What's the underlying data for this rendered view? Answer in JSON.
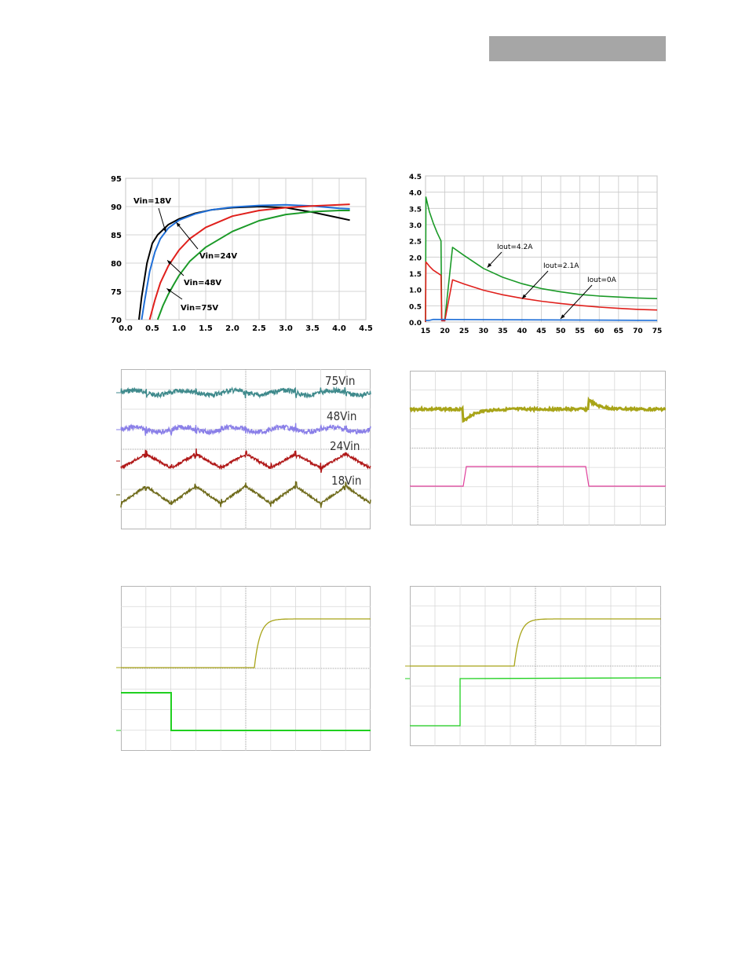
{
  "header": {
    "color": "#a6a6a6"
  },
  "colors": {
    "black": "#000000",
    "blue": "#1f6fd8",
    "red": "#e0201c",
    "green": "#1b9a28",
    "scope_teal": "#3f8a8c",
    "scope_violet": "#8a7fe8",
    "scope_darkred": "#b01818",
    "scope_olive": "#6e6a1a",
    "scope_yellow": "#a8a418",
    "scope_magenta": "#e0409c",
    "scope_green": "#20d020",
    "grid": "#c8c8c8"
  },
  "chart_data": [
    {
      "id": "efficiency",
      "type": "line",
      "xlim": [
        0.0,
        4.5
      ],
      "ylim": [
        70,
        95
      ],
      "xticks": [
        "0.0",
        "0.5",
        "1.0",
        "1.5",
        "2.0",
        "2.5",
        "3.0",
        "3.5",
        "4.0",
        "4.5"
      ],
      "yticks": [
        "70",
        "75",
        "80",
        "85",
        "90",
        "95"
      ],
      "grid": true,
      "series": [
        {
          "name": "Vin=18V",
          "color": "black",
          "x": [
            0.25,
            0.3,
            0.4,
            0.5,
            0.6,
            0.8,
            1.0,
            1.3,
            1.6,
            2.0,
            2.5,
            3.0,
            3.5,
            4.0,
            4.2
          ],
          "y": [
            70,
            74,
            80,
            83.5,
            85,
            86.8,
            87.8,
            88.8,
            89.4,
            89.8,
            90.0,
            89.8,
            89.0,
            88.0,
            87.6
          ]
        },
        {
          "name": "Vin=24V",
          "color": "blue",
          "x": [
            0.3,
            0.35,
            0.45,
            0.55,
            0.65,
            0.8,
            1.0,
            1.3,
            1.6,
            2.0,
            2.5,
            3.0,
            3.5,
            4.0,
            4.2
          ],
          "y": [
            70,
            73,
            78.5,
            82,
            84.3,
            86.2,
            87.6,
            88.7,
            89.4,
            89.9,
            90.2,
            90.3,
            90.1,
            89.7,
            89.6
          ]
        },
        {
          "name": "Vin=48V",
          "color": "red",
          "x": [
            0.45,
            0.55,
            0.65,
            0.8,
            1.0,
            1.2,
            1.5,
            2.0,
            2.5,
            3.0,
            3.5,
            4.0,
            4.2
          ],
          "y": [
            70,
            73.5,
            76.5,
            79.5,
            82.3,
            84.3,
            86.3,
            88.3,
            89.3,
            89.8,
            90.1,
            90.3,
            90.4
          ]
        },
        {
          "name": "Vin=75V",
          "color": "green",
          "x": [
            0.6,
            0.7,
            0.8,
            0.9,
            1.0,
            1.2,
            1.5,
            2.0,
            2.5,
            3.0,
            3.5,
            4.0,
            4.2
          ],
          "y": [
            70,
            72.5,
            74.5,
            76.2,
            77.8,
            80.3,
            82.8,
            85.6,
            87.5,
            88.6,
            89.1,
            89.3,
            89.3
          ]
        }
      ],
      "annotations": [
        "Vin=18V",
        "Vin=24V",
        "Vin=48V",
        "Vin=75V"
      ]
    },
    {
      "id": "decay",
      "type": "line",
      "xlim": [
        15,
        75
      ],
      "ylim": [
        0,
        4.5
      ],
      "xticks": [
        "15",
        "20",
        "25",
        "30",
        "35",
        "40",
        "45",
        "50",
        "55",
        "60",
        "65",
        "70",
        "75"
      ],
      "yticks": [
        "0.0",
        "0.5",
        "1.0",
        "1.5",
        "2.0",
        "2.5",
        "3.0",
        "3.5",
        "4.0",
        "4.5"
      ],
      "grid": true,
      "series": [
        {
          "name": "Iout=4.2A",
          "color": "green",
          "x": [
            15,
            15.1,
            16,
            17,
            18,
            19,
            19.2,
            20,
            22,
            25,
            30,
            35,
            40,
            45,
            50,
            55,
            60,
            65,
            70,
            75
          ],
          "y": [
            0,
            3.85,
            3.4,
            3.05,
            2.75,
            2.5,
            0.08,
            0.08,
            2.3,
            2.05,
            1.65,
            1.38,
            1.18,
            1.03,
            0.93,
            0.85,
            0.8,
            0.77,
            0.74,
            0.72
          ]
        },
        {
          "name": "Iout=2.1A",
          "color": "red",
          "x": [
            15,
            15.1,
            16,
            17,
            18,
            19,
            19.2,
            20,
            22,
            25,
            30,
            35,
            40,
            45,
            50,
            55,
            60,
            65,
            70,
            75
          ],
          "y": [
            0,
            1.85,
            1.72,
            1.6,
            1.52,
            1.44,
            0.04,
            0.04,
            1.3,
            1.17,
            0.98,
            0.84,
            0.73,
            0.64,
            0.57,
            0.51,
            0.46,
            0.42,
            0.39,
            0.37
          ]
        },
        {
          "name": "Iout=0A",
          "color": "blue",
          "x": [
            15,
            16,
            17,
            75
          ],
          "y": [
            0.05,
            0.05,
            0.08,
            0.05
          ]
        }
      ],
      "annotations": [
        "Iout=4.2A",
        "Iout=2.1A",
        "Iout=0A"
      ]
    },
    {
      "id": "ripple",
      "type": "line",
      "labels": [
        "75Vin",
        "48Vin",
        "24Vin",
        "18Vin"
      ],
      "series_colors": [
        "scope_teal",
        "scope_violet",
        "scope_darkred",
        "scope_olive"
      ],
      "cycles": 5
    },
    {
      "id": "transient",
      "type": "line",
      "series_colors": [
        "scope_yellow",
        "scope_magenta"
      ]
    },
    {
      "id": "startup_a",
      "type": "line",
      "series_colors": [
        "scope_yellow",
        "scope_green"
      ]
    },
    {
      "id": "startup_b",
      "type": "line",
      "series_colors": [
        "scope_yellow",
        "scope_green"
      ]
    }
  ]
}
